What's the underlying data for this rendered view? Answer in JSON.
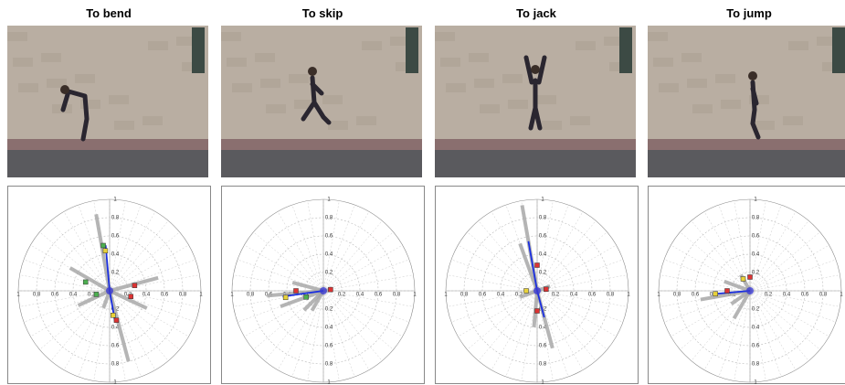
{
  "radial_ticks": [
    0.2,
    0.4,
    0.6,
    0.8,
    1
  ],
  "panels": [
    {
      "title": "To  bend",
      "bars": [
        {
          "angle": 100,
          "r": 0.85
        },
        {
          "angle": 285,
          "r": 0.8
        },
        {
          "angle": 15,
          "r": 0.55
        },
        {
          "angle": 150,
          "r": 0.5
        },
        {
          "angle": 205,
          "r": 0.38
        },
        {
          "angle": 335,
          "r": 0.45
        },
        {
          "angle": 250,
          "r": 0.2
        }
      ],
      "vectors": [
        {
          "angle": 95,
          "r": 0.5
        },
        {
          "angle": 280,
          "r": 0.35
        }
      ],
      "markers": [
        {
          "angle": 98,
          "r": 0.5,
          "color": "#4caf50"
        },
        {
          "angle": 96,
          "r": 0.44,
          "color": "#e8d23a"
        },
        {
          "angle": 12,
          "r": 0.28,
          "color": "#d33"
        },
        {
          "angle": 278,
          "r": 0.27,
          "color": "#e8d23a"
        },
        {
          "angle": 283,
          "r": 0.33,
          "color": "#d33"
        },
        {
          "angle": 195,
          "r": 0.15,
          "color": "#4caf50"
        },
        {
          "angle": 160,
          "r": 0.28,
          "color": "#4caf50"
        },
        {
          "angle": 345,
          "r": 0.24,
          "color": "#d33"
        }
      ]
    },
    {
      "title": "To  skip",
      "bars": [
        {
          "angle": 185,
          "r": 0.62
        },
        {
          "angle": 200,
          "r": 0.5
        },
        {
          "angle": 165,
          "r": 0.35
        },
        {
          "angle": 225,
          "r": 0.3
        },
        {
          "angle": 5,
          "r": 0.1
        },
        {
          "angle": 240,
          "r": 0.25
        }
      ],
      "vectors": [
        {
          "angle": 188,
          "r": 0.45
        }
      ],
      "markers": [
        {
          "angle": 190,
          "r": 0.42,
          "color": "#e8d23a"
        },
        {
          "angle": 180,
          "r": 0.3,
          "color": "#d33"
        },
        {
          "angle": 10,
          "r": 0.08,
          "color": "#d33"
        },
        {
          "angle": 200,
          "r": 0.2,
          "color": "#4caf50"
        }
      ]
    },
    {
      "title": "To jack",
      "bars": [
        {
          "angle": 100,
          "r": 0.95
        },
        {
          "angle": 285,
          "r": 0.65
        },
        {
          "angle": 110,
          "r": 0.55
        },
        {
          "angle": 265,
          "r": 0.4
        },
        {
          "angle": 200,
          "r": 0.2
        },
        {
          "angle": 20,
          "r": 0.15
        }
      ],
      "vectors": [
        {
          "angle": 100,
          "r": 0.55
        },
        {
          "angle": 285,
          "r": 0.3
        }
      ],
      "markers": [
        {
          "angle": 90,
          "r": 0.28,
          "color": "#d33"
        },
        {
          "angle": 270,
          "r": 0.22,
          "color": "#d33"
        },
        {
          "angle": 180,
          "r": 0.12,
          "color": "#e8d23a"
        },
        {
          "angle": 10,
          "r": 0.1,
          "color": "#d33"
        }
      ]
    },
    {
      "title": "To jump",
      "bars": [
        {
          "angle": 190,
          "r": 0.55
        },
        {
          "angle": 240,
          "r": 0.35
        },
        {
          "angle": 160,
          "r": 0.3
        },
        {
          "angle": 215,
          "r": 0.25
        },
        {
          "angle": 120,
          "r": 0.2
        }
      ],
      "vectors": [
        {
          "angle": 185,
          "r": 0.4
        }
      ],
      "markers": [
        {
          "angle": 185,
          "r": 0.38,
          "color": "#e8d23a"
        },
        {
          "angle": 180,
          "r": 0.25,
          "color": "#d33"
        },
        {
          "angle": 90,
          "r": 0.15,
          "color": "#d33"
        },
        {
          "angle": 120,
          "r": 0.15,
          "color": "#e8d23a"
        }
      ]
    }
  ]
}
